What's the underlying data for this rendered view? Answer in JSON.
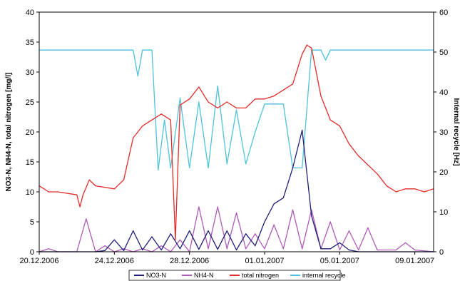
{
  "chart_data": {
    "type": "line",
    "ylabel_left": "NO3-N, NH4-N, total nitrogen [mg/l]",
    "ylabel_right": "Internal recycle [Hz]",
    "ylim_left": [
      0,
      40
    ],
    "ylim_right": [
      0,
      60
    ],
    "yticks_left": [
      0,
      5,
      10,
      15,
      20,
      25,
      30,
      35,
      40
    ],
    "yticks_right": [
      0,
      10,
      20,
      30,
      40,
      50,
      60
    ],
    "xlim": [
      "2006-12-20",
      "2007-01-10"
    ],
    "xticks": [
      {
        "date": "2006-12-20",
        "label": "20.12.2006"
      },
      {
        "date": "2006-12-24",
        "label": "24.12.2006"
      },
      {
        "date": "2006-12-28",
        "label": "28.12.2006"
      },
      {
        "date": "2007-01-01",
        "label": "01.01.2007"
      },
      {
        "date": "2007-01-05",
        "label": "05.01.2007"
      },
      {
        "date": "2007-01-09",
        "label": "09.01.2007"
      }
    ],
    "grid": false,
    "legend": "bottom",
    "series": [
      {
        "name": "NO3-N",
        "axis": "left",
        "color": "#1f1f7a",
        "x": [
          "2006-12-20",
          "2006-12-23",
          "2006-12-23 12:00",
          "2006-12-24",
          "2006-12-24 12:00",
          "2006-12-25",
          "2006-12-25 12:00",
          "2006-12-26",
          "2006-12-26 12:00",
          "2006-12-27",
          "2006-12-27 12:00",
          "2006-12-28",
          "2006-12-28 12:00",
          "2006-12-29",
          "2006-12-29 12:00",
          "2006-12-30",
          "2006-12-30 12:00",
          "2006-12-31",
          "2006-12-31 12:00",
          "2007-01-01",
          "2007-01-01 12:00",
          "2007-01-02",
          "2007-01-02 12:00",
          "2007-01-03",
          "2007-01-03 12:00",
          "2007-01-04",
          "2007-01-04 12:00",
          "2007-01-05",
          "2007-01-05 12:00",
          "2007-01-06",
          "2007-01-10"
        ],
        "y": [
          0,
          0,
          0.2,
          2,
          0.2,
          3.5,
          0.3,
          2.5,
          0.3,
          3,
          0.5,
          3.5,
          0.4,
          3.5,
          0.4,
          3.5,
          0.3,
          3,
          1,
          5,
          8,
          9,
          14,
          20.3,
          6,
          0.5,
          0.5,
          1.5,
          0.3,
          0,
          0
        ]
      },
      {
        "name": "NH4-N",
        "axis": "left",
        "color": "#b05ab8",
        "x": [
          "2006-12-20",
          "2006-12-20 12:00",
          "2006-12-21",
          "2006-12-22",
          "2006-12-22 12:00",
          "2006-12-23",
          "2006-12-23 12:00",
          "2006-12-24",
          "2006-12-24 12:00",
          "2006-12-25",
          "2006-12-25 12:00",
          "2006-12-26",
          "2006-12-26 12:00",
          "2006-12-27",
          "2006-12-27 12:00",
          "2006-12-28",
          "2006-12-28 12:00",
          "2006-12-29",
          "2006-12-29 12:00",
          "2006-12-30",
          "2006-12-30 12:00",
          "2006-12-31",
          "2006-12-31 12:00",
          "2007-01-01",
          "2007-01-01 12:00",
          "2007-01-02",
          "2007-01-02 12:00",
          "2007-01-03",
          "2007-01-03 12:00",
          "2007-01-04",
          "2007-01-04 12:00",
          "2007-01-05",
          "2007-01-05 12:00",
          "2007-01-06",
          "2007-01-06 12:00",
          "2007-01-07",
          "2007-01-08",
          "2007-01-08 12:00",
          "2007-01-09",
          "2007-01-10"
        ],
        "y": [
          0,
          0.5,
          0,
          0,
          5.5,
          0,
          1,
          0,
          0.5,
          0,
          0.5,
          0,
          1,
          0,
          2,
          0,
          7.5,
          0.5,
          7.5,
          0.5,
          6.5,
          0.5,
          3,
          0.5,
          4.5,
          0.5,
          7,
          0.5,
          7,
          0.5,
          5,
          0.3,
          3.5,
          0.3,
          4,
          0.3,
          0.3,
          1.5,
          0.3,
          0
        ]
      },
      {
        "name": "total nitrogen",
        "axis": "left",
        "color": "#e52a2a",
        "x": [
          "2006-12-20",
          "2006-12-20 12:00",
          "2006-12-21",
          "2006-12-22",
          "2006-12-22 04:00",
          "2006-12-22 08:00",
          "2006-12-22 16:00",
          "2006-12-23",
          "2006-12-24",
          "2006-12-24 12:00",
          "2006-12-25",
          "2006-12-25 12:00",
          "2006-12-26",
          "2006-12-26 12:00",
          "2006-12-27",
          "2006-12-27 06:00",
          "2006-12-27 12:00",
          "2006-12-28",
          "2006-12-28 12:00",
          "2006-12-29",
          "2006-12-29 12:00",
          "2006-12-30",
          "2006-12-30 12:00",
          "2006-12-31",
          "2006-12-31 12:00",
          "2007-01-01",
          "2007-01-01 12:00",
          "2007-01-02",
          "2007-01-02 12:00",
          "2007-01-03",
          "2007-01-03 06:00",
          "2007-01-03 12:00",
          "2007-01-04",
          "2007-01-04 12:00",
          "2007-01-05",
          "2007-01-05 12:00",
          "2007-01-06",
          "2007-01-06 12:00",
          "2007-01-07",
          "2007-01-07 12:00",
          "2007-01-08",
          "2007-01-08 12:00",
          "2007-01-09",
          "2007-01-09 12:00",
          "2007-01-10"
        ],
        "y": [
          11,
          10,
          10,
          9.5,
          7.5,
          9.5,
          12,
          11,
          10.5,
          12,
          19,
          21,
          22,
          23,
          22,
          2,
          24.5,
          25.5,
          27.5,
          25,
          24,
          25,
          24,
          24,
          25.5,
          25.5,
          26,
          27,
          28,
          33,
          34.5,
          34,
          26,
          22,
          21,
          18,
          16,
          14.5,
          13,
          11,
          10,
          10.5,
          10.5,
          10,
          10.5
        ]
      },
      {
        "name": "internal recycle",
        "axis": "right",
        "color": "#4cc3d8",
        "x": [
          "2006-12-20",
          "2006-12-25",
          "2006-12-25 06:00",
          "2006-12-25 12:00",
          "2006-12-26",
          "2006-12-26 08:00",
          "2006-12-26 16:00",
          "2006-12-27",
          "2006-12-27 12:00",
          "2006-12-28",
          "2006-12-28 12:00",
          "2006-12-29",
          "2006-12-29 12:00",
          "2006-12-30",
          "2006-12-30 12:00",
          "2006-12-31",
          "2006-12-31 12:00",
          "2007-01-01",
          "2007-01-02",
          "2007-01-02 12:00",
          "2007-01-03",
          "2007-01-03 12:00",
          "2007-01-04",
          "2007-01-04 06:00",
          "2007-01-04 12:00",
          "2007-01-10"
        ],
        "y": [
          50.5,
          50.5,
          44,
          50.5,
          50.5,
          20.5,
          33,
          21,
          38.5,
          21,
          37.5,
          21,
          41.5,
          22,
          35.5,
          22,
          30,
          37,
          37,
          21,
          21,
          50.5,
          50.5,
          48,
          50.5,
          50.5
        ]
      }
    ]
  }
}
